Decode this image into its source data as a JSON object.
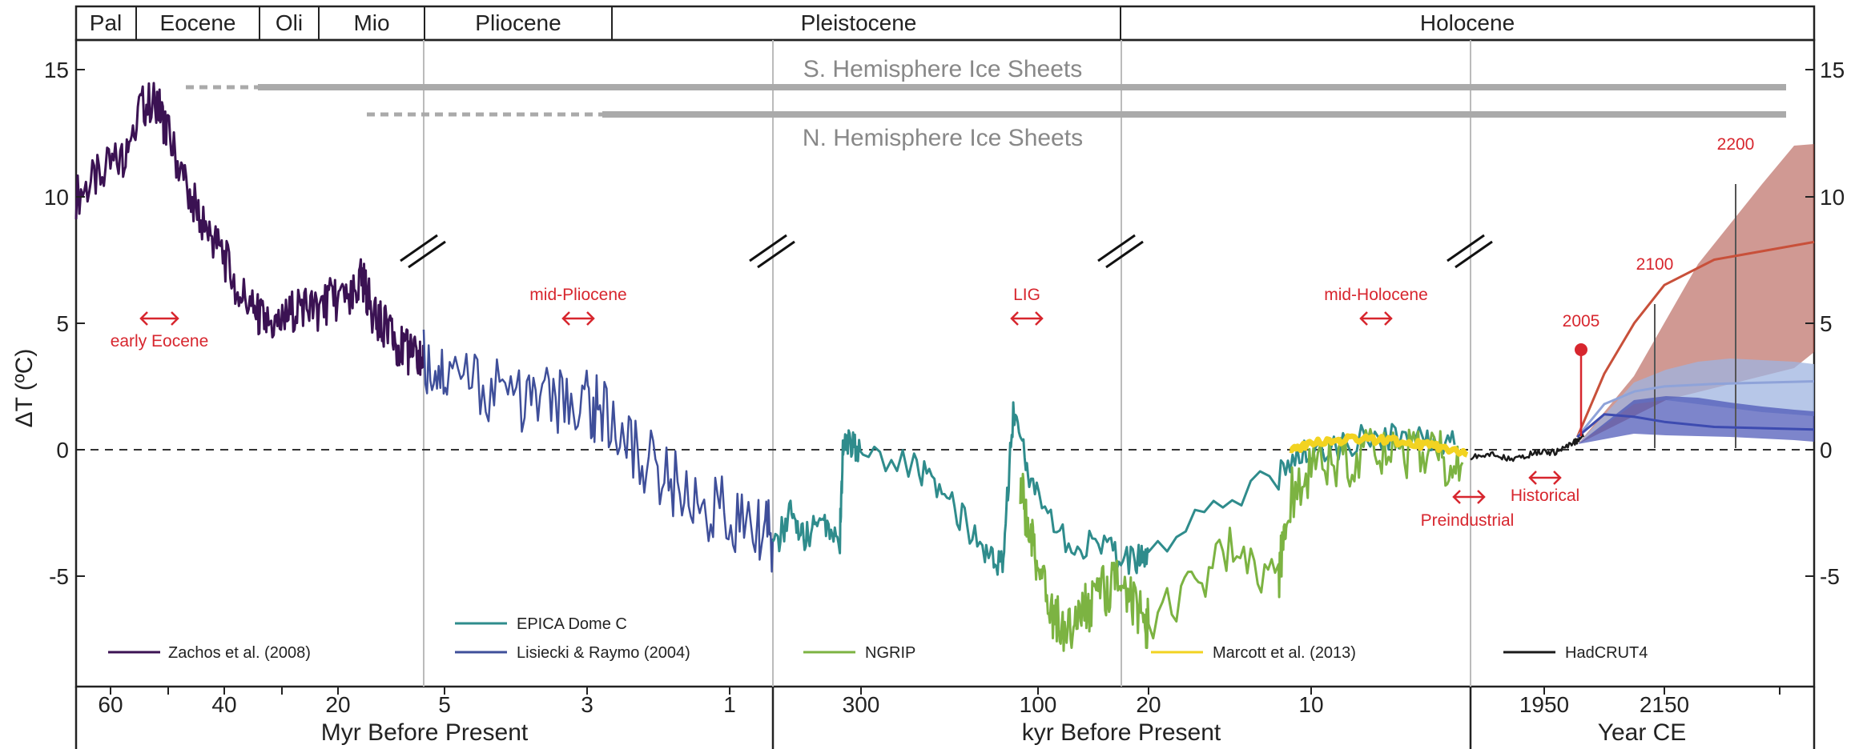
{
  "chart_data": {
    "type": "line",
    "title": "",
    "ylabel": "ΔT (ºC)",
    "ylim": [
      -9.5,
      16
    ],
    "y_ticks": [
      "15",
      "10",
      "5",
      "0",
      "-5"
    ],
    "epochs": [
      "Pal",
      "Eocene",
      "Oli",
      "Mio",
      "Pliocene",
      "Pleistocene",
      "Holocene"
    ],
    "ice_sheets": [
      "S. Hemisphere Ice Sheets",
      "N. Hemisphere Ice Sheets"
    ],
    "x_sections": [
      {
        "xlabel": "Myr Before Present",
        "ticks": [
          "60",
          "40",
          "20",
          "5",
          "3",
          "1"
        ]
      },
      {
        "xlabel": "kyr Before Present",
        "ticks": [
          "300",
          "100",
          "20",
          "10"
        ]
      },
      {
        "xlabel": "Year CE",
        "ticks": [
          "1950",
          "2150"
        ]
      }
    ],
    "annotations": [
      "early Eocene",
      "mid-Pliocene",
      "LIG",
      "mid-Holocene",
      "Preindustrial",
      "Historical",
      "2005",
      "2100",
      "2200"
    ],
    "series": [
      {
        "name": "Zachos et al. (2008)",
        "color": "#3b1253",
        "x": [
          66,
          62,
          58,
          55,
          52,
          50,
          47,
          44,
          41,
          38,
          35,
          33,
          30,
          27,
          24,
          21,
          18,
          16,
          14,
          12,
          10,
          8,
          6,
          5.3
        ],
        "y": [
          10,
          10.8,
          11.5,
          13.5,
          13.8,
          12.5,
          10.5,
          9,
          8,
          6.5,
          5.5,
          5,
          5,
          5.8,
          5.5,
          6,
          5.8,
          6.8,
          5.2,
          4.8,
          4.2,
          3.8,
          3.6,
          3.5
        ]
      },
      {
        "name": "Lisiecki & Raymo (2004)",
        "color": "#3f4f9a",
        "x": [
          5.3,
          5,
          4.5,
          4,
          3.6,
          3.2,
          3,
          2.6,
          2.2,
          1.8,
          1.4,
          1,
          0.8
        ],
        "y": [
          3.5,
          3,
          2.5,
          2,
          2,
          1.8,
          1.5,
          0,
          -1,
          -2,
          -2.5,
          -3,
          -3.5
        ]
      },
      {
        "name": "EPICA Dome C",
        "color": "#2f8c8c",
        "x": [
          800,
          700,
          620,
          520,
          420,
          400,
          330,
          240,
          200,
          160,
          140,
          128,
          110,
          80,
          50,
          30,
          20,
          12,
          10,
          6,
          3,
          1
        ],
        "y": [
          -4,
          -2.5,
          -3.5,
          -2.8,
          -3.5,
          0.5,
          0,
          -0.5,
          -2,
          -4,
          -4.5,
          1.5,
          -1,
          -3.5,
          -4,
          -4.5,
          -4,
          -1,
          0,
          0.5,
          0.5,
          0.2
        ]
      },
      {
        "name": "NGRIP",
        "color": "#7cb342",
        "x": [
          120,
          110,
          100,
          90,
          80,
          70,
          60,
          50,
          40,
          30,
          22,
          18,
          15,
          12,
          11.5,
          10,
          8,
          6,
          4,
          2,
          0.5
        ],
        "y": [
          -1.5,
          -3,
          -5,
          -6.5,
          -7,
          -6.5,
          -6,
          -5.5,
          -5,
          -6,
          -7,
          -6,
          -4,
          -5,
          -2,
          -1,
          -0.5,
          0,
          -0.2,
          -0.3,
          -0.5
        ]
      },
      {
        "name": "Marcott et al. (2013)",
        "color": "#f2d321",
        "x": [
          11.3,
          10,
          8,
          6,
          4,
          2,
          0.2
        ],
        "y": [
          -0.1,
          0.3,
          0.4,
          0.4,
          0.3,
          0.1,
          -0.2
        ]
      },
      {
        "name": "HadCRUT4",
        "color": "#1a1a1a",
        "x": [
          1850,
          1880,
          1910,
          1940,
          1970,
          2000,
          2015
        ],
        "y": [
          -0.3,
          -0.2,
          -0.4,
          -0.1,
          -0.1,
          0.3,
          0.5
        ]
      },
      {
        "name": "",
        "color": "#c8503a",
        "x": [
          2005,
          2050,
          2100,
          2150,
          2200,
          2300
        ],
        "y": [
          0.5,
          3,
          5,
          6.5,
          7.5,
          8.2
        ]
      },
      {
        "name": "",
        "color": "#8fa3d9",
        "x": [
          2005,
          2050,
          2100,
          2150,
          2200,
          2300
        ],
        "y": [
          0.5,
          1.8,
          2.3,
          2.5,
          2.6,
          2.7
        ]
      },
      {
        "name": "",
        "color": "#3d4bb0",
        "x": [
          2005,
          2050,
          2100,
          2150,
          2200,
          2300
        ],
        "y": [
          0.5,
          1.4,
          1.3,
          1.1,
          0.9,
          0.8
        ]
      }
    ],
    "grid": false,
    "legend_position": "bottom"
  }
}
